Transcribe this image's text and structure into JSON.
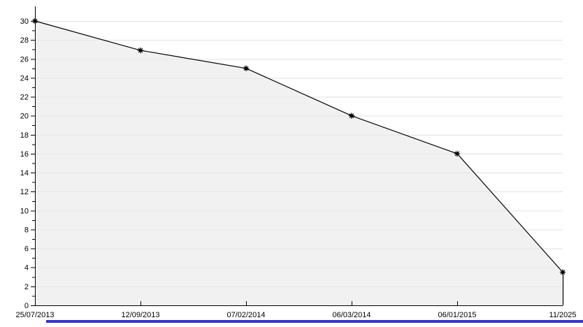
{
  "chart_data": {
    "type": "area",
    "title": "",
    "xlabel": "",
    "ylabel": "",
    "x_labels": [
      "25/07/2013",
      "12/09/2013",
      "07/02/2014",
      "06/03/2014",
      "06/01/2015",
      "11/2025"
    ],
    "values": [
      30,
      26.9,
      25,
      20,
      16,
      3.5
    ],
    "ylim": [
      0,
      30
    ],
    "y_tick_step": 2,
    "y_minor_tick_step": 1,
    "y_tick_labels": [
      "0",
      "2",
      "4",
      "6",
      "8",
      "10",
      "12",
      "14",
      "16",
      "18",
      "20",
      "22",
      "24",
      "26",
      "28",
      "30"
    ],
    "grid": true,
    "legend_position": "none",
    "marker": "black-asterisk-dot",
    "colors": {
      "line": "#000000",
      "fill": "#f1f1f1",
      "grid": "#e0e0e0",
      "axis": "#000000",
      "text": "#000000"
    }
  },
  "accent_bar": {
    "color": "#3333cc"
  }
}
